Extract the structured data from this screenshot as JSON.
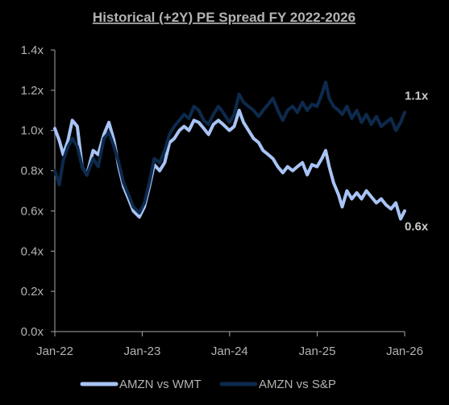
{
  "chart_data": {
    "type": "line",
    "title": "Historical (+2Y) PE Spread FY 2022-2026",
    "xlabel": "",
    "ylabel": "",
    "xlim": [
      "2022-01-01",
      "2026-01-01"
    ],
    "ylim": [
      0,
      1.4
    ],
    "x_ticks": [
      "Jan-22",
      "Jan-23",
      "Jan-24",
      "Jan-25",
      "Jan-26"
    ],
    "y_ticks": [
      "0.0x",
      "0.2x",
      "0.4x",
      "0.6x",
      "0.8x",
      "1.0x",
      "1.2x",
      "1.4x"
    ],
    "grid": false,
    "legend_position": "bottom",
    "series": [
      {
        "name": "AMZN vs WMT",
        "color": "#a8c4f5",
        "end_label": "0.6x",
        "points": [
          [
            "2022-01-01",
            1.01
          ],
          [
            "2022-01-20",
            0.95
          ],
          [
            "2022-02-05",
            0.88
          ],
          [
            "2022-02-25",
            0.95
          ],
          [
            "2022-03-15",
            1.05
          ],
          [
            "2022-04-05",
            1.02
          ],
          [
            "2022-04-25",
            0.82
          ],
          [
            "2022-05-15",
            0.78
          ],
          [
            "2022-06-10",
            0.9
          ],
          [
            "2022-07-01",
            0.88
          ],
          [
            "2022-07-25",
            0.98
          ],
          [
            "2022-08-15",
            1.04
          ],
          [
            "2022-09-05",
            0.95
          ],
          [
            "2022-09-25",
            0.82
          ],
          [
            "2022-10-15",
            0.72
          ],
          [
            "2022-11-05",
            0.66
          ],
          [
            "2022-11-25",
            0.6
          ],
          [
            "2022-12-20",
            0.57
          ],
          [
            "2023-01-10",
            0.62
          ],
          [
            "2023-01-31",
            0.72
          ],
          [
            "2023-02-20",
            0.83
          ],
          [
            "2023-03-15",
            0.8
          ],
          [
            "2023-04-05",
            0.84
          ],
          [
            "2023-04-25",
            0.94
          ],
          [
            "2023-05-15",
            0.96
          ],
          [
            "2023-06-05",
            1.0
          ],
          [
            "2023-06-25",
            1.02
          ],
          [
            "2023-07-15",
            1.0
          ],
          [
            "2023-08-05",
            1.05
          ],
          [
            "2023-08-25",
            1.04
          ],
          [
            "2023-09-15",
            1.01
          ],
          [
            "2023-10-05",
            0.98
          ],
          [
            "2023-10-25",
            1.03
          ],
          [
            "2023-11-15",
            1.05
          ],
          [
            "2023-12-05",
            1.03
          ],
          [
            "2023-12-31",
            1.0
          ],
          [
            "2024-01-20",
            1.02
          ],
          [
            "2024-02-10",
            1.1
          ],
          [
            "2024-02-28",
            1.04
          ],
          [
            "2024-03-20",
            1.0
          ],
          [
            "2024-04-10",
            0.96
          ],
          [
            "2024-05-01",
            0.94
          ],
          [
            "2024-05-20",
            0.9
          ],
          [
            "2024-06-10",
            0.88
          ],
          [
            "2024-06-30",
            0.86
          ],
          [
            "2024-07-20",
            0.82
          ],
          [
            "2024-08-10",
            0.79
          ],
          [
            "2024-08-30",
            0.82
          ],
          [
            "2024-09-20",
            0.8
          ],
          [
            "2024-10-10",
            0.82
          ],
          [
            "2024-10-31",
            0.84
          ],
          [
            "2024-11-20",
            0.78
          ],
          [
            "2024-12-10",
            0.83
          ],
          [
            "2024-12-31",
            0.82
          ],
          [
            "2025-01-20",
            0.86
          ],
          [
            "2025-02-05",
            0.9
          ],
          [
            "2025-02-20",
            0.82
          ],
          [
            "2025-03-10",
            0.74
          ],
          [
            "2025-03-31",
            0.68
          ],
          [
            "2025-04-15",
            0.62
          ],
          [
            "2025-05-05",
            0.7
          ],
          [
            "2025-05-25",
            0.66
          ],
          [
            "2025-06-15",
            0.69
          ],
          [
            "2025-07-05",
            0.66
          ],
          [
            "2025-07-25",
            0.7
          ],
          [
            "2025-08-15",
            0.67
          ],
          [
            "2025-09-05",
            0.64
          ],
          [
            "2025-09-25",
            0.66
          ],
          [
            "2025-10-15",
            0.63
          ],
          [
            "2025-11-05",
            0.61
          ],
          [
            "2025-11-25",
            0.64
          ],
          [
            "2025-12-15",
            0.56
          ],
          [
            "2026-01-01",
            0.6
          ]
        ]
      },
      {
        "name": "AMZN vs S&P",
        "color": "#0d2a4c",
        "end_label": "1.1x",
        "points": [
          [
            "2022-01-01",
            0.8
          ],
          [
            "2022-01-20",
            0.73
          ],
          [
            "2022-02-05",
            0.85
          ],
          [
            "2022-02-25",
            0.92
          ],
          [
            "2022-03-15",
            0.96
          ],
          [
            "2022-04-05",
            0.92
          ],
          [
            "2022-04-25",
            0.82
          ],
          [
            "2022-05-15",
            0.78
          ],
          [
            "2022-06-10",
            0.86
          ],
          [
            "2022-07-01",
            0.82
          ],
          [
            "2022-07-25",
            0.96
          ],
          [
            "2022-08-15",
            0.99
          ],
          [
            "2022-09-05",
            0.92
          ],
          [
            "2022-09-25",
            0.84
          ],
          [
            "2022-10-15",
            0.74
          ],
          [
            "2022-11-05",
            0.68
          ],
          [
            "2022-11-25",
            0.62
          ],
          [
            "2022-12-20",
            0.59
          ],
          [
            "2023-01-10",
            0.64
          ],
          [
            "2023-01-31",
            0.74
          ],
          [
            "2023-02-20",
            0.86
          ],
          [
            "2023-03-15",
            0.84
          ],
          [
            "2023-04-05",
            0.9
          ],
          [
            "2023-04-25",
            0.98
          ],
          [
            "2023-05-15",
            1.02
          ],
          [
            "2023-06-05",
            1.05
          ],
          [
            "2023-06-25",
            1.08
          ],
          [
            "2023-07-15",
            1.06
          ],
          [
            "2023-08-05",
            1.12
          ],
          [
            "2023-08-25",
            1.1
          ],
          [
            "2023-09-15",
            1.05
          ],
          [
            "2023-10-05",
            1.03
          ],
          [
            "2023-10-25",
            1.08
          ],
          [
            "2023-11-15",
            1.12
          ],
          [
            "2023-12-05",
            1.09
          ],
          [
            "2023-12-31",
            1.04
          ],
          [
            "2024-01-20",
            1.08
          ],
          [
            "2024-02-10",
            1.18
          ],
          [
            "2024-02-28",
            1.14
          ],
          [
            "2024-03-20",
            1.12
          ],
          [
            "2024-04-10",
            1.1
          ],
          [
            "2024-05-01",
            1.07
          ],
          [
            "2024-05-20",
            1.1
          ],
          [
            "2024-06-10",
            1.13
          ],
          [
            "2024-06-30",
            1.16
          ],
          [
            "2024-07-20",
            1.1
          ],
          [
            "2024-08-10",
            1.05
          ],
          [
            "2024-08-30",
            1.1
          ],
          [
            "2024-09-20",
            1.12
          ],
          [
            "2024-10-10",
            1.09
          ],
          [
            "2024-10-31",
            1.14
          ],
          [
            "2024-11-20",
            1.1
          ],
          [
            "2024-12-10",
            1.13
          ],
          [
            "2024-12-31",
            1.12
          ],
          [
            "2025-01-20",
            1.18
          ],
          [
            "2025-02-05",
            1.24
          ],
          [
            "2025-02-20",
            1.16
          ],
          [
            "2025-03-10",
            1.12
          ],
          [
            "2025-03-31",
            1.1
          ],
          [
            "2025-04-15",
            1.08
          ],
          [
            "2025-05-05",
            1.12
          ],
          [
            "2025-05-25",
            1.06
          ],
          [
            "2025-06-15",
            1.1
          ],
          [
            "2025-07-05",
            1.04
          ],
          [
            "2025-07-25",
            1.08
          ],
          [
            "2025-08-15",
            1.03
          ],
          [
            "2025-09-05",
            1.07
          ],
          [
            "2025-09-25",
            1.02
          ],
          [
            "2025-10-15",
            1.04
          ],
          [
            "2025-11-05",
            1.06
          ],
          [
            "2025-11-25",
            1.0
          ],
          [
            "2025-12-15",
            1.04
          ],
          [
            "2026-01-01",
            1.09
          ]
        ]
      }
    ]
  }
}
